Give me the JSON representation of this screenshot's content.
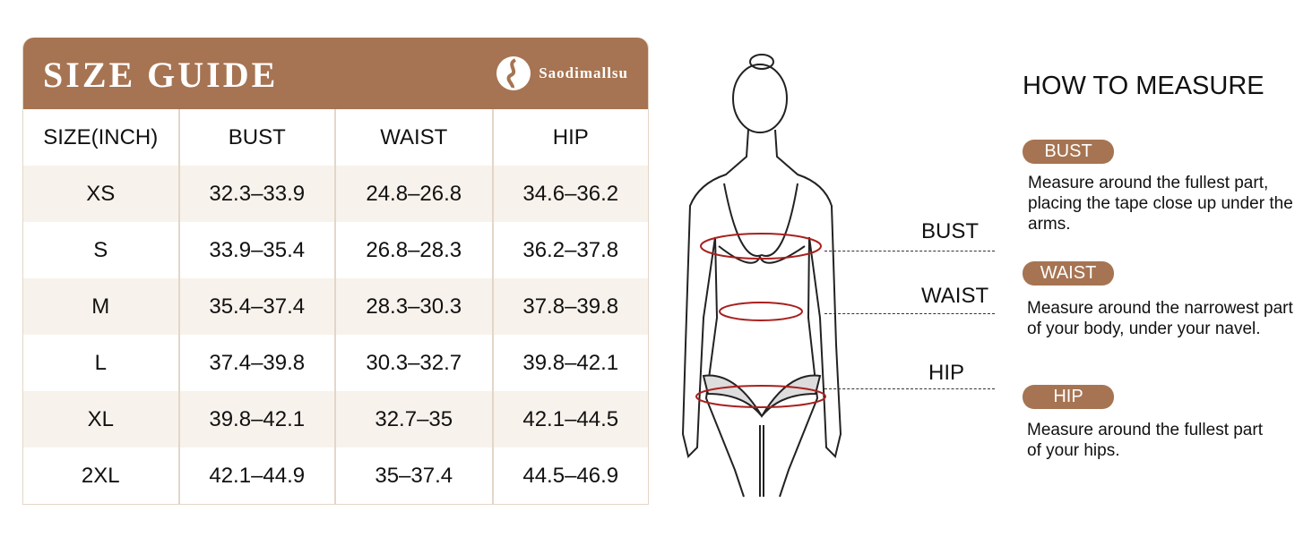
{
  "size_guide": {
    "title": "SIZE GUIDE",
    "brand": "Saodimallsu",
    "brand_color": "#a67452",
    "columns": [
      "SIZE(INCH)",
      "BUST",
      "WAIST",
      "HIP"
    ],
    "rows": [
      [
        "XS",
        "32.3–33.9",
        "24.8–26.8",
        "34.6–36.2"
      ],
      [
        "S",
        "33.9–35.4",
        "26.8–28.3",
        "36.2–37.8"
      ],
      [
        "M",
        "35.4–37.4",
        "28.3–30.3",
        "37.8–39.8"
      ],
      [
        "L",
        "37.4–39.8",
        "30.3–32.7",
        "39.8–42.1"
      ],
      [
        "XL",
        "39.8–42.1",
        "32.7–35",
        "42.1–44.5"
      ],
      [
        "2XL",
        "42.1–44.9",
        "35–37.4",
        "44.5–46.9"
      ]
    ]
  },
  "figure": {
    "labels": [
      "BUST",
      "WAIST",
      "HIP"
    ],
    "measure_color": "#a8201e"
  },
  "how_to": {
    "title": "HOW TO MEASURE",
    "items": [
      {
        "label": "BUST",
        "text": "Measure around the fullest part, placing the tape close up under the arms."
      },
      {
        "label": "WAIST",
        "text": "Measure around the narrowest part of your body, under your navel."
      },
      {
        "label": "HIP",
        "text": "Measure around the fullest part of your hips."
      }
    ]
  }
}
